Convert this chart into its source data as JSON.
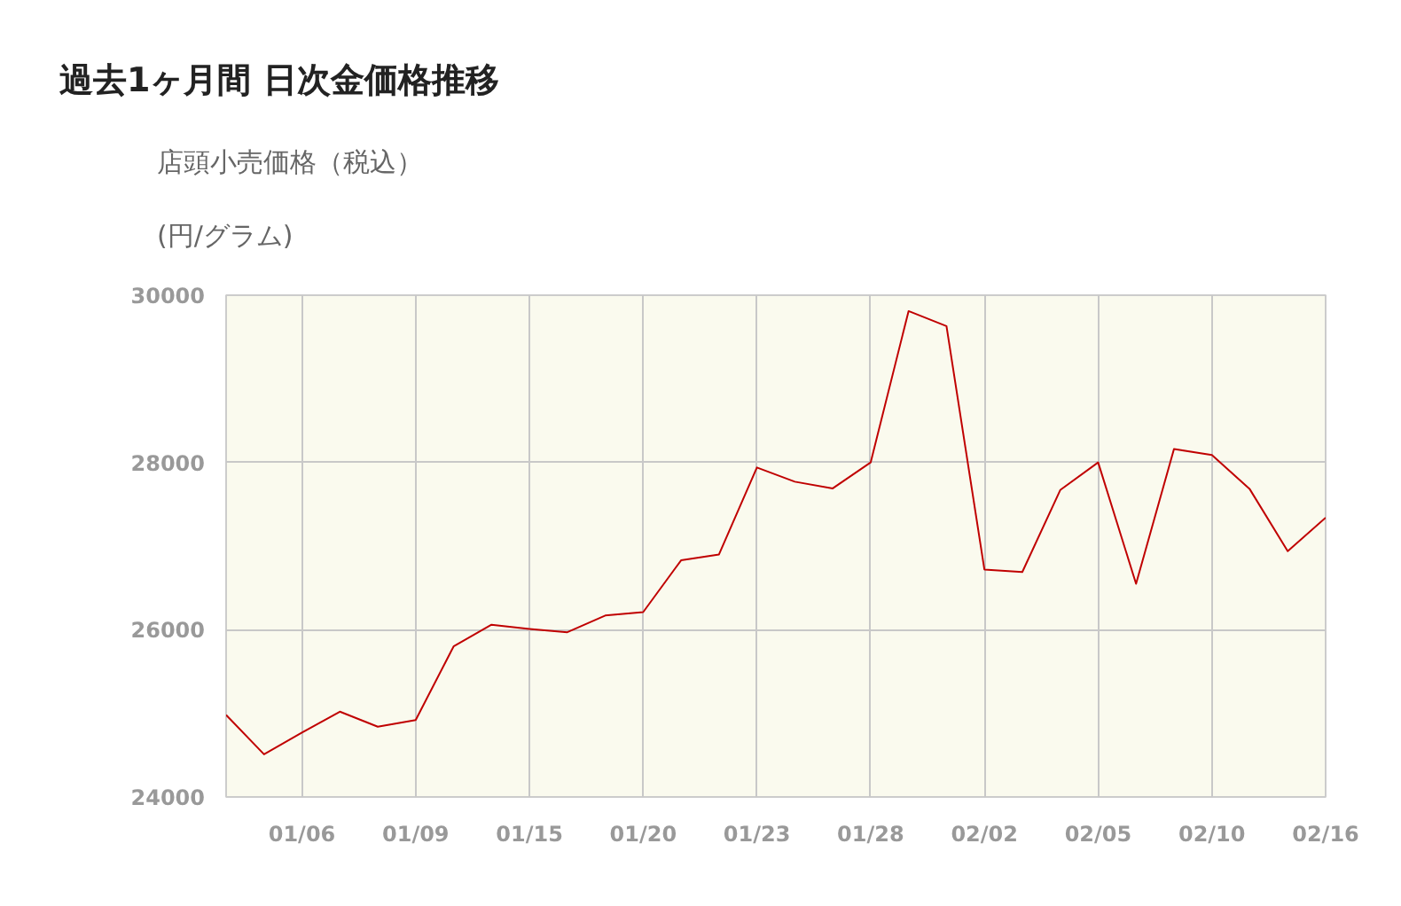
{
  "chart_data": {
    "type": "line",
    "title": "過去1ヶ月間 日次金価格推移",
    "subtitle": "店頭小売価格（税込）",
    "ylabel": "(円/グラム)",
    "categories": [
      null,
      null,
      "01/06",
      null,
      null,
      "01/09",
      null,
      null,
      "01/15",
      null,
      null,
      "01/20",
      null,
      null,
      "01/23",
      null,
      null,
      "01/28",
      null,
      null,
      "02/02",
      null,
      null,
      "02/05",
      null,
      null,
      "02/10",
      null,
      null,
      "02/16"
    ],
    "series": [
      {
        "color": "#c00000",
        "values": [
          24980,
          24510,
          24770,
          25020,
          24840,
          24920,
          25800,
          26060,
          26010,
          25970,
          26170,
          26210,
          26830,
          26900,
          27940,
          27770,
          27690,
          28000,
          29810,
          29630,
          26720,
          26690,
          27670,
          28000,
          26550,
          28160,
          28090,
          27680,
          26940,
          27340
        ]
      }
    ],
    "ylim": [
      24000,
      30000
    ],
    "yticks": [
      24000,
      26000,
      28000,
      30000
    ],
    "grid": true,
    "line_style": "solid"
  }
}
